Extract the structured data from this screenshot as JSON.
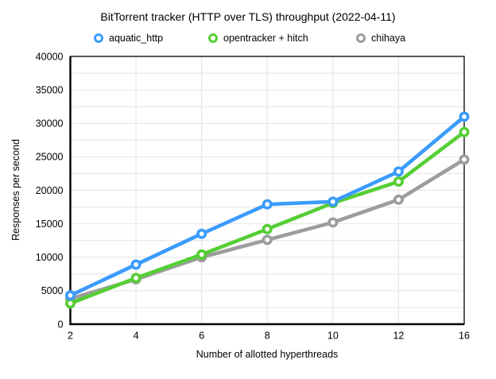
{
  "chart_data": {
    "type": "line",
    "title": "BitTorrent tracker (HTTP over TLS) throughput (2022-04-11)",
    "xlabel": "Number of allotted hyperthreads",
    "ylabel": "Responses per second",
    "categories": [
      2,
      4,
      6,
      8,
      10,
      12,
      16
    ],
    "series": [
      {
        "name": "aquatic_http",
        "color": "#3B9BFC",
        "values": [
          4300,
          8900,
          13500,
          17900,
          18300,
          22800,
          31000
        ]
      },
      {
        "name": "opentracker + hitch",
        "color": "#55CE34",
        "values": [
          3100,
          6900,
          10400,
          14200,
          18100,
          21300,
          28700
        ]
      },
      {
        "name": "chihaya",
        "color": "#9D9D9D",
        "values": [
          3800,
          6700,
          10000,
          12600,
          15200,
          18600,
          24600
        ]
      }
    ],
    "ylim": [
      0,
      40000
    ],
    "y_ticks": [
      0,
      5000,
      10000,
      15000,
      20000,
      25000,
      30000,
      35000,
      40000
    ],
    "grid_interval": 2500,
    "grid": true,
    "legend_position": "top",
    "colors": {
      "grid": "#E4E4E4",
      "axis": "#000000",
      "text": "#000000",
      "background": "#FFFFFF",
      "marker_hole": "#FFFFFF"
    }
  }
}
